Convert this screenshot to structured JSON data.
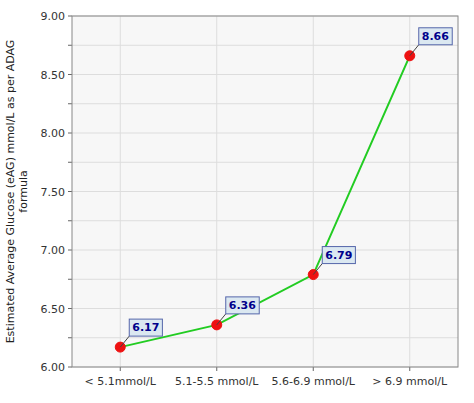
{
  "chart_data": {
    "type": "line",
    "categories": [
      "< 5.1mmol/L",
      "5.1-5.5 mmol/L",
      "5.6-6.9 mmol/L",
      "> 6.9 mmol/L"
    ],
    "values": [
      6.17,
      6.36,
      6.79,
      8.66
    ],
    "data_labels": true,
    "color": "#22cc22",
    "colors": [
      "#ee1111",
      "#ee1111",
      "#ee1111",
      "#ee1111"
    ],
    "marker": "circle",
    "ylabel": "Estimated Average Glucose (eAG) mmol/L as per ADAG\nformula",
    "ylim": [
      6.0,
      9.0
    ],
    "yticks": [
      {
        "value": 6.0,
        "label": "6.00"
      },
      {
        "value": 6.25,
        "label": null
      },
      {
        "value": 6.5,
        "label": "6.50"
      },
      {
        "value": 6.75,
        "label": null
      },
      {
        "value": 7.0,
        "label": "7.00"
      },
      {
        "value": 7.25,
        "label": null
      },
      {
        "value": 7.5,
        "label": "7.50"
      },
      {
        "value": 7.75,
        "label": null
      },
      {
        "value": 8.0,
        "label": "8.00"
      },
      {
        "value": 8.25,
        "label": null
      },
      {
        "value": 8.5,
        "label": "8.50"
      },
      {
        "value": 8.75,
        "label": null
      },
      {
        "value": 9.0,
        "label": "9.00"
      }
    ],
    "grid": true
  }
}
